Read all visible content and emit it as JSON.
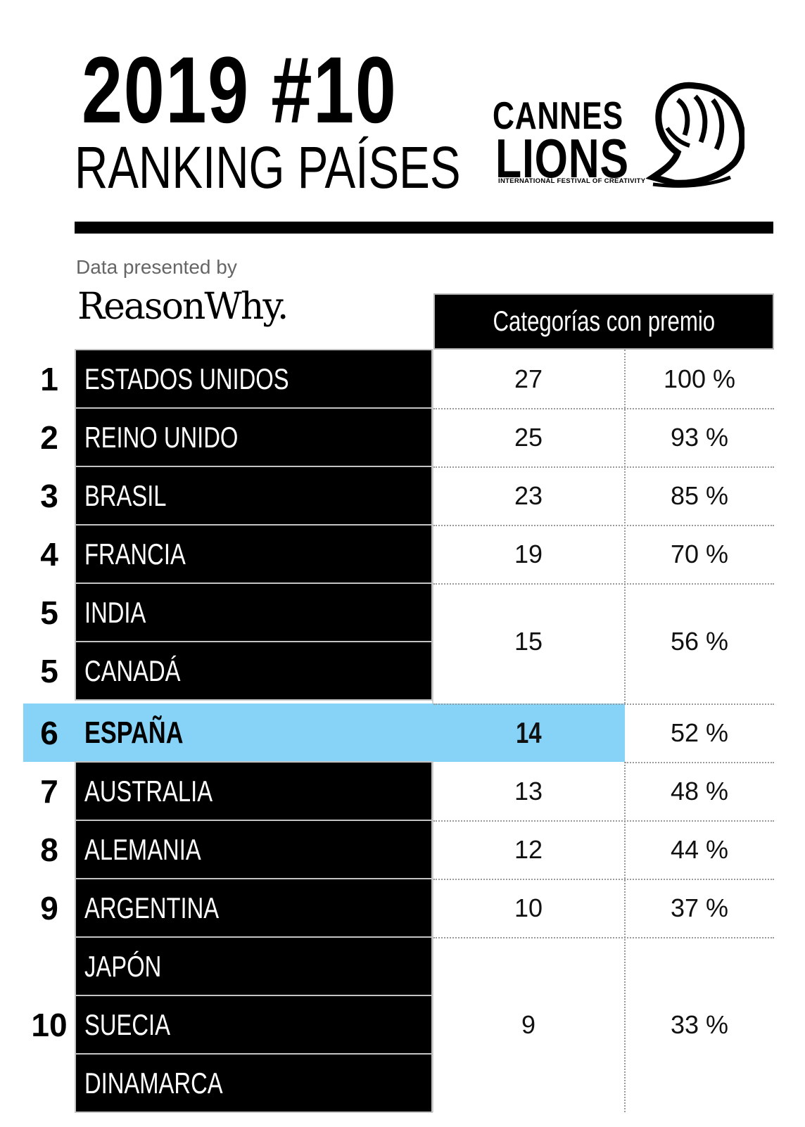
{
  "header": {
    "year_title": "2019 #10",
    "subtitle": "RANKING PAÍSES"
  },
  "logo": {
    "line1": "CANNES",
    "line2": "LIONS",
    "tagline": "INTERNATIONAL FESTIVAL OF CREATIVITY"
  },
  "credit": {
    "presented_by": "Data presented by",
    "brand": "ReasonWhy."
  },
  "table": {
    "column_header": "Categorías con premio",
    "highlight_color": "#86d3f7",
    "rows": [
      {
        "rank": "1",
        "country": "ESTADOS UNIDOS",
        "count": "27",
        "percent": "100 %"
      },
      {
        "rank": "2",
        "country": "REINO UNIDO",
        "count": "25",
        "percent": "93 %"
      },
      {
        "rank": "3",
        "country": "BRASIL",
        "count": "23",
        "percent": "85 %"
      },
      {
        "rank": "4",
        "country": "FRANCIA",
        "count": "19",
        "percent": "70 %"
      },
      {
        "rank": "5",
        "country": "INDIA",
        "count": "15",
        "percent": "56 %"
      },
      {
        "rank": "5",
        "country": "CANADÁ",
        "count": "15",
        "percent": "56 %"
      },
      {
        "rank": "6",
        "country": "ESPAÑA",
        "count": "14",
        "percent": "52 %"
      },
      {
        "rank": "7",
        "country": "AUSTRALIA",
        "count": "13",
        "percent": "48 %"
      },
      {
        "rank": "8",
        "country": "ALEMANIA",
        "count": "12",
        "percent": "44 %"
      },
      {
        "rank": "9",
        "country": "ARGENTINA",
        "count": "10",
        "percent": "37 %"
      },
      {
        "rank": "10",
        "country": "JAPÓN",
        "count": "9",
        "percent": "33 %"
      },
      {
        "rank": "10",
        "country": "SUECIA",
        "count": "9",
        "percent": "33 %"
      },
      {
        "rank": "10",
        "country": "DINAMARCA",
        "count": "9",
        "percent": "33 %"
      }
    ]
  }
}
